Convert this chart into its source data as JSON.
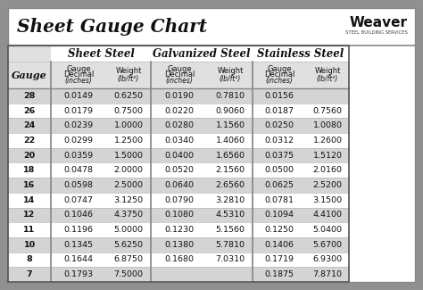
{
  "title": "Sheet Gauge Chart",
  "bg_outer": "#909090",
  "bg_inner": "#f2f2f2",
  "bg_white": "#ffffff",
  "bg_row_light": "#ffffff",
  "bg_row_dark": "#d4d4d4",
  "border_color": "#888888",
  "line_color": "#bbbbbb",
  "text_dark": "#111111",
  "gauges": [
    28,
    26,
    24,
    22,
    20,
    18,
    16,
    14,
    12,
    11,
    10,
    8,
    7
  ],
  "sheet_steel_decimal": [
    "0.0149",
    "0.0179",
    "0.0239",
    "0.0299",
    "0.0359",
    "0.0478",
    "0.0598",
    "0.0747",
    "0.1046",
    "0.1196",
    "0.1345",
    "0.1644",
    "0.1793"
  ],
  "sheet_steel_weight": [
    "0.6250",
    "0.7500",
    "1.0000",
    "1.2500",
    "1.5000",
    "2.0000",
    "2.5000",
    "3.1250",
    "4.3750",
    "5.0000",
    "5.6250",
    "6.8750",
    "7.5000"
  ],
  "galvanized_decimal": [
    "0.0190",
    "0.0220",
    "0.0280",
    "0.0340",
    "0.0400",
    "0.0520",
    "0.0640",
    "0.0790",
    "0.1080",
    "0.1230",
    "0.1380",
    "0.1680",
    ""
  ],
  "galvanized_weight": [
    "0.7810",
    "0.9060",
    "1.1560",
    "1.4060",
    "1.6560",
    "2.1560",
    "2.6560",
    "3.2810",
    "4.5310",
    "5.1560",
    "5.7810",
    "7.0310",
    ""
  ],
  "stainless_decimal": [
    "0.0156",
    "0.0187",
    "0.0250",
    "0.0312",
    "0.0375",
    "0.0500",
    "0.0625",
    "0.0781",
    "0.1094",
    "0.1250",
    "0.1406",
    "0.1719",
    "0.1875"
  ],
  "stainless_weight": [
    "",
    "0.7560",
    "1.0080",
    "1.2600",
    "1.5120",
    "2.0160",
    "2.5200",
    "3.1500",
    "4.4100",
    "5.0400",
    "5.6700",
    "6.9300",
    "7.8710"
  ],
  "figw": 4.74,
  "figh": 3.25,
  "dpi": 100
}
